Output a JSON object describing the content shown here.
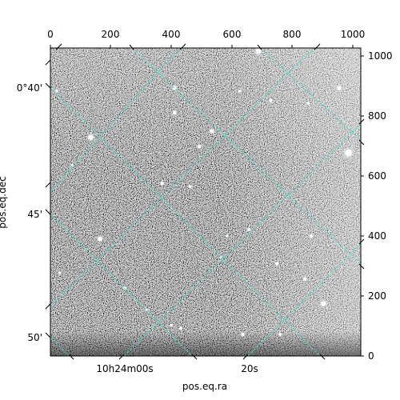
{
  "chart_data": {
    "type": "image",
    "xlabel": "pos.eq.ra",
    "ylabel": "pos.eq.dec",
    "pixel_axes": {
      "top_ticks": [
        "0",
        "200",
        "400",
        "600",
        "800",
        "1000"
      ],
      "right_ticks": [
        "0",
        "200",
        "400",
        "600",
        "800",
        "1000"
      ]
    },
    "world_axes": {
      "ra_ticks": [
        "10h24m00s",
        "20s"
      ],
      "dec_ticks": [
        "0°40'",
        "45'",
        "50'"
      ]
    },
    "grid_color": "#40e0d0",
    "stars": [
      [
        0.67,
        0.01,
        3.2
      ],
      [
        0.13,
        0.29,
        3.2
      ],
      [
        0.96,
        0.34,
        4.2
      ],
      [
        0.93,
        0.13,
        2.6
      ],
      [
        0.4,
        0.13,
        2.4
      ],
      [
        0.4,
        0.21,
        2.2
      ],
      [
        0.52,
        0.27,
        2.6
      ],
      [
        0.48,
        0.32,
        2.0
      ],
      [
        0.16,
        0.62,
        2.8
      ],
      [
        0.36,
        0.44,
        2.0
      ],
      [
        0.45,
        0.45,
        1.8
      ],
      [
        0.64,
        0.59,
        2.0
      ],
      [
        0.84,
        0.61,
        2.0
      ],
      [
        0.82,
        0.75,
        2.0
      ],
      [
        0.73,
        0.7,
        2.0
      ],
      [
        0.88,
        0.83,
        3.2
      ],
      [
        0.61,
        0.14,
        1.6
      ],
      [
        0.71,
        0.17,
        1.8
      ],
      [
        0.83,
        0.18,
        1.6
      ],
      [
        0.62,
        0.93,
        2.2
      ],
      [
        0.74,
        0.93,
        1.8
      ],
      [
        0.42,
        0.91,
        1.8
      ],
      [
        0.39,
        0.9,
        1.6
      ],
      [
        0.24,
        0.78,
        1.8
      ],
      [
        0.03,
        0.73,
        1.6
      ],
      [
        0.07,
        0.38,
        1.4
      ],
      [
        0.57,
        0.61,
        1.6
      ],
      [
        0.55,
        0.68,
        1.6
      ],
      [
        0.31,
        0.85,
        1.5
      ],
      [
        0.02,
        0.14,
        1.6
      ]
    ]
  }
}
